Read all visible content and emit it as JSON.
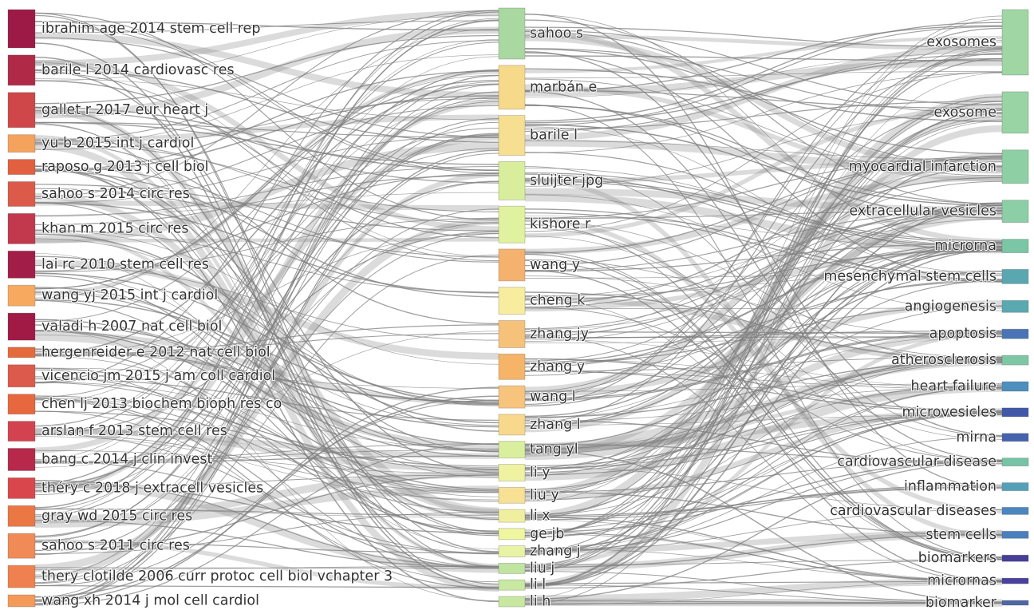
{
  "diagram": {
    "type": "three-field sankey",
    "columns": [
      {
        "key": "references",
        "nodes": [
          {
            "label": "ibrahim age 2014 stem cell rep",
            "color": "#9e1a46",
            "size": 48
          },
          {
            "label": "barile l 2014 cardiovasc res",
            "color": "#b02a48",
            "size": 38
          },
          {
            "label": "gallet r 2017 eur heart j",
            "color": "#cf4749",
            "size": 44
          },
          {
            "label": "yu b 2015 int j cardiol",
            "color": "#f4a25c",
            "size": 22
          },
          {
            "label": "raposo g 2013 j cell biol",
            "color": "#e2603f",
            "size": 19
          },
          {
            "label": "sahoo s 2014 circ res",
            "color": "#db5a49",
            "size": 31
          },
          {
            "label": "khan m 2015 circ res",
            "color": "#c2384c",
            "size": 38
          },
          {
            "label": "lai rc 2010 stem cell res",
            "color": "#a21d47",
            "size": 34
          },
          {
            "label": "wang yj 2015 int j cardiol",
            "color": "#f6a95f",
            "size": 26
          },
          {
            "label": "valadi h 2007 nat cell biol",
            "color": "#a01a45",
            "size": 34
          },
          {
            "label": "hergenreider e 2012 nat cell biol",
            "color": "#e56a3b",
            "size": 13
          },
          {
            "label": "vicencio jm 2015 j am coll cardiol",
            "color": "#db5a4b",
            "size": 28
          },
          {
            "label": "chen lj 2013 biochem bioph res co",
            "color": "#e7683e",
            "size": 25
          },
          {
            "label": "arslan f 2013 stem cell res",
            "color": "#d2434f",
            "size": 25
          },
          {
            "label": "bang c 2014 j clin invest",
            "color": "#b7284a",
            "size": 28
          },
          {
            "label": "théry c 2018 j extracell vesicles",
            "color": "#d9474c",
            "size": 26
          },
          {
            "label": "gray wd 2015 circ res",
            "color": "#ea7744",
            "size": 26
          },
          {
            "label": "sahoo s 2011 circ res",
            "color": "#f08a57",
            "size": 31
          },
          {
            "label": "thery clotilde 2006 curr protoc cell biol vchapter 3",
            "color": "#ee814f",
            "size": 28
          },
          {
            "label": "wang xh 2014 j mol cell cardiol",
            "color": "#f39a59",
            "size": 15
          }
        ]
      },
      {
        "key": "authors",
        "nodes": [
          {
            "label": "sahoo s",
            "color": "#a9d9a0",
            "size": 64
          },
          {
            "label": "marbán e",
            "color": "#f7d98a",
            "size": 55
          },
          {
            "label": "barile l",
            "color": "#f6df90",
            "size": 50
          },
          {
            "label": "sluijter jpg",
            "color": "#d9ee9c",
            "size": 48
          },
          {
            "label": "kishore r",
            "color": "#e1f29f",
            "size": 46
          },
          {
            "label": "wang y",
            "color": "#f5b26e",
            "size": 40
          },
          {
            "label": "cheng k",
            "color": "#f8ec9e",
            "size": 34
          },
          {
            "label": "zhang jy",
            "color": "#f6c27a",
            "size": 34
          },
          {
            "label": "zhang y",
            "color": "#f5b468",
            "size": 32
          },
          {
            "label": "wang l",
            "color": "#f6c47c",
            "size": 28
          },
          {
            "label": "zhang l",
            "color": "#f8d88a",
            "size": 26
          },
          {
            "label": "tang yl",
            "color": "#d9ef9e",
            "size": 21
          },
          {
            "label": "li y",
            "color": "#eff3a1",
            "size": 21
          },
          {
            "label": "liu y",
            "color": "#f8e094",
            "size": 20
          },
          {
            "label": "li x",
            "color": "#f0ef9f",
            "size": 16
          },
          {
            "label": "ge jb",
            "color": "#eef69f",
            "size": 14
          },
          {
            "label": "zhang j",
            "color": "#e8f3a6",
            "size": 14
          },
          {
            "label": "liu j",
            "color": "#bfe5a0",
            "size": 13
          },
          {
            "label": "li l",
            "color": "#c9e9a2",
            "size": 13
          },
          {
            "label": "li h",
            "color": "#c8e8a1",
            "size": 13
          }
        ]
      },
      {
        "key": "keywords",
        "nodes": [
          {
            "label": "exosomes",
            "color": "#9fd6a4",
            "size": 82
          },
          {
            "label": "exosome",
            "color": "#99d4a4",
            "size": 52
          },
          {
            "label": "myocardial infarction",
            "color": "#8ecfa3",
            "size": 42
          },
          {
            "label": "extracellular vesicles",
            "color": "#8ccea5",
            "size": 28
          },
          {
            "label": "microrna",
            "color": "#7bc6a4",
            "size": 17
          },
          {
            "label": "mesenchymal stem cells",
            "color": "#5aa7b2",
            "size": 18
          },
          {
            "label": "angiogenesis",
            "color": "#5ba8b0",
            "size": 15
          },
          {
            "label": "apoptosis",
            "color": "#4a74b5",
            "size": 12
          },
          {
            "label": "atherosclerosis",
            "color": "#7ec7a4",
            "size": 12
          },
          {
            "label": "heart failure",
            "color": "#4d8fbd",
            "size": 12
          },
          {
            "label": "microvesicles",
            "color": "#4158a9",
            "size": 11
          },
          {
            "label": "mirna",
            "color": "#4662ad",
            "size": 10
          },
          {
            "label": "cardiovascular disease",
            "color": "#76c3a6",
            "size": 10
          },
          {
            "label": "inflammation",
            "color": "#55a0b9",
            "size": 10
          },
          {
            "label": "cardiovascular diseases",
            "color": "#4b86bf",
            "size": 9
          },
          {
            "label": "stem cells",
            "color": "#4a7fbe",
            "size": 9
          },
          {
            "label": "biomarkers",
            "color": "#473e98",
            "size": 8
          },
          {
            "label": "micrornas",
            "color": "#4a40a0",
            "size": 7
          },
          {
            "label": "biomarker",
            "color": "#4f67a5",
            "size": 6
          }
        ]
      }
    ],
    "link_color": "#7f7f7f"
  }
}
